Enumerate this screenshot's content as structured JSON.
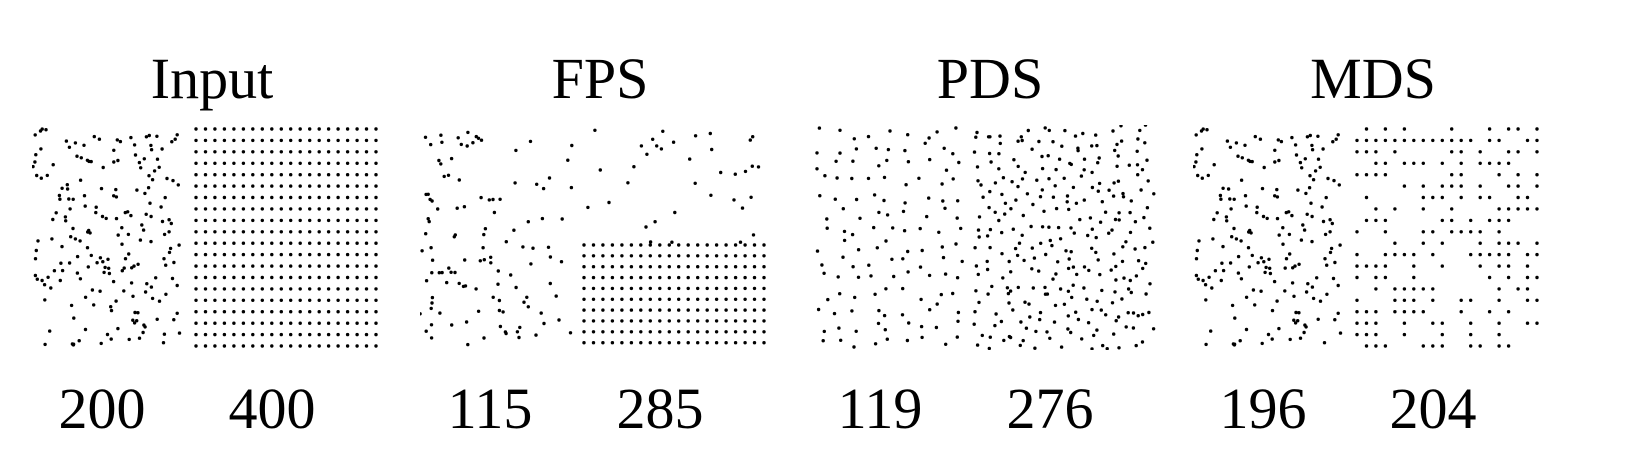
{
  "panels": [
    {
      "title": "Input",
      "left_count": "200",
      "right_count": "400",
      "mode": "input"
    },
    {
      "title": "FPS",
      "left_count": "115",
      "right_count": "285",
      "mode": "fps"
    },
    {
      "title": "PDS",
      "left_count": "119",
      "right_count": "276",
      "mode": "pds"
    },
    {
      "title": "MDS",
      "left_count": "196",
      "right_count": "204",
      "mode": "mds"
    }
  ],
  "colors": {
    "point": "#000000",
    "background": "#ffffff"
  }
}
